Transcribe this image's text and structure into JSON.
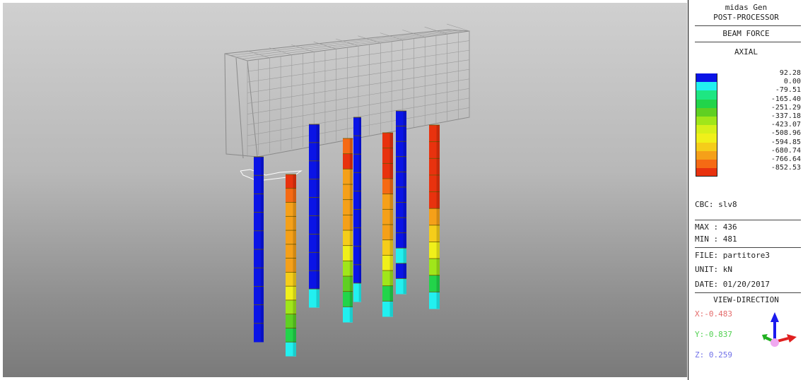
{
  "panel": {
    "app_name": "midas Gen",
    "mode": "POST-PROCESSOR",
    "result_type": "BEAM FORCE",
    "component": "AXIAL",
    "legend": {
      "values": [
        "92.28",
        "0.00",
        "-79.51",
        "-165.40",
        "-251.29",
        "-337.18",
        "-423.07",
        "-508.96",
        "-594.85",
        "-680.74",
        "-766.64",
        "-852.53"
      ],
      "colors": [
        "#0a14e6",
        "#22f0f0",
        "#1ee682",
        "#22d44a",
        "#5fd022",
        "#a0e61a",
        "#d6f01a",
        "#f0f01a",
        "#f5cd1a",
        "#f5a019",
        "#f56a14",
        "#e8320e"
      ]
    },
    "cbc": "CBC: slv8",
    "max": "MAX : 436",
    "min": "MIN : 481",
    "file": "FILE: partitore3",
    "unit": "UNIT: kN",
    "date": "DATE: 01/20/2017",
    "view_direction": {
      "title": "VIEW-DIRECTION",
      "x": "X:-0.483",
      "y": "Y:-0.837",
      "z": "Z: 0.259",
      "x_color": "#e46a6a",
      "y_color": "#4fd04f",
      "z_color": "#7070e8"
    }
  },
  "model": {
    "columns": [
      {
        "id": "col-1",
        "segments": [
          "#0a14e6",
          "#0a14e6",
          "#0a14e6",
          "#0a14e6",
          "#0a14e6",
          "#0a14e6",
          "#0a14e6",
          "#0a14e6",
          "#0a14e6",
          "#0a14e6"
        ]
      },
      {
        "id": "col-2",
        "segments": [
          "#e8320e",
          "#f56a14",
          "#f5a019",
          "#f5a019",
          "#f5a019",
          "#f5a019",
          "#f5a019",
          "#f5cd1a",
          "#f0f01a",
          "#a0e61a",
          "#5fd022",
          "#22d44a",
          "#22f0f0"
        ]
      },
      {
        "id": "col-3",
        "segments": [
          "#0a14e6",
          "#0a14e6",
          "#0a14e6",
          "#0a14e6",
          "#0a14e6",
          "#0a14e6",
          "#0a14e6",
          "#0a14e6",
          "#0a14e6",
          "#22f0f0"
        ]
      },
      {
        "id": "col-4",
        "segments": [
          "#f56a14",
          "#e8320e",
          "#f5a019",
          "#f5a019",
          "#f5a019",
          "#f5a019",
          "#f5cd1a",
          "#f0f01a",
          "#a0e61a",
          "#5fd022",
          "#22d44a",
          "#22f0f0"
        ]
      },
      {
        "id": "col-5",
        "segments": [
          "#0a14e6",
          "#0a14e6",
          "#0a14e6",
          "#0a14e6",
          "#0a14e6",
          "#0a14e6",
          "#0a14e6",
          "#0a14e6",
          "#0a14e6",
          "#22f0f0"
        ]
      },
      {
        "id": "col-6",
        "segments": [
          "#e8320e",
          "#e8320e",
          "#e8320e",
          "#f56a14",
          "#f5a019",
          "#f5a019",
          "#f5a019",
          "#f5cd1a",
          "#f0f01a",
          "#a0e61a",
          "#22d44a",
          "#22f0f0"
        ]
      },
      {
        "id": "col-7",
        "segments": [
          "#0a14e6",
          "#0a14e6",
          "#0a14e6",
          "#0a14e6",
          "#0a14e6",
          "#0a14e6",
          "#0a14e6",
          "#0a14e6",
          "#0a14e6",
          "#22f0f0",
          "#0a14e6",
          "#22f0f0"
        ]
      },
      {
        "id": "col-8",
        "segments": [
          "#e8320e",
          "#e8320e",
          "#e8320e",
          "#e8320e",
          "#e8320e",
          "#f5a019",
          "#f5cd1a",
          "#f0f01a",
          "#a0e61a",
          "#22d44a",
          "#22f0f0"
        ]
      }
    ]
  }
}
